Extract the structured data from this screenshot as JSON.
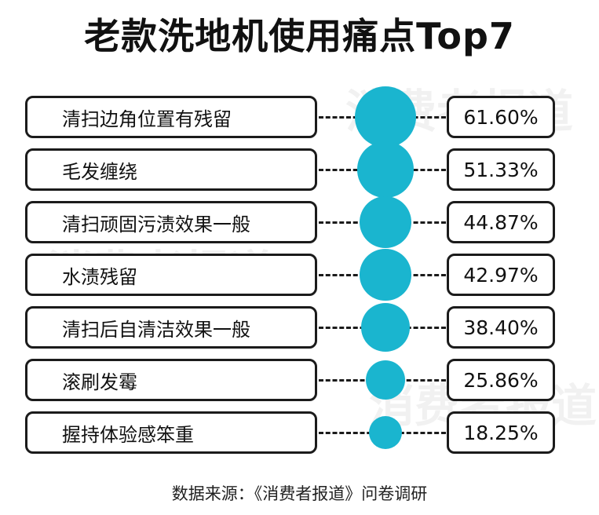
{
  "title": "老款洗地机使用痛点Top7",
  "source": "数据来源：《消费者报道》问卷调研",
  "watermark": "消费者报道",
  "colors": {
    "bubble": "#1ab5cf",
    "border": "#1b1b1b"
  },
  "chart_data": {
    "type": "bubble",
    "title": "老款洗地机使用痛点Top7",
    "unit": "%",
    "categories": [
      "清扫边角位置有残留",
      "毛发缠绕",
      "清扫顽固污渍效果一般",
      "水渍残留",
      "清扫后自清洁效果一般",
      "滚刷发霉",
      "握持体验感笨重"
    ],
    "values": [
      61.6,
      51.33,
      44.87,
      42.97,
      38.4,
      25.86,
      18.25
    ],
    "value_labels": [
      "61.60%",
      "51.33%",
      "44.87%",
      "42.97%",
      "38.40%",
      "25.86%",
      "18.25%"
    ]
  }
}
